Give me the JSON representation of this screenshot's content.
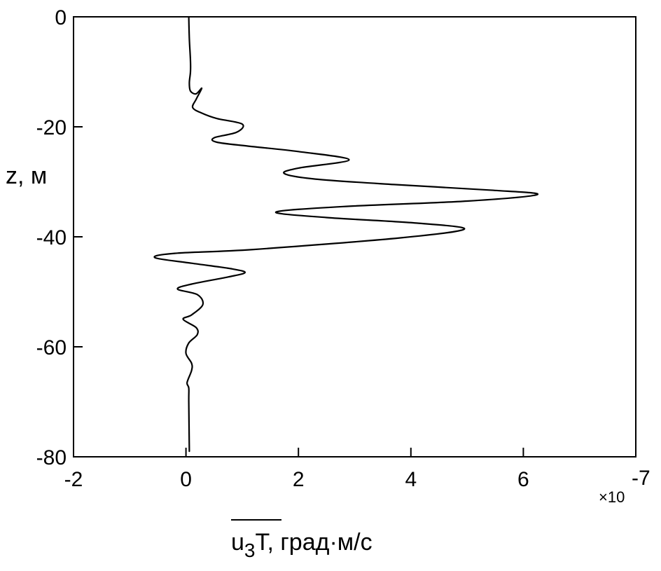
{
  "chart_data": {
    "type": "line",
    "orientation": "profile",
    "title": "",
    "xlabel": {
      "overbar_text": "u3T",
      "main": "u",
      "subscript": "3",
      "tail": "T",
      "units": ", град·м/с"
    },
    "ylabel": "z, м",
    "x_multiplier": {
      "base": "×10",
      "exponent": "-7"
    },
    "xlim": [
      -2,
      8
    ],
    "ylim": [
      -80,
      0
    ],
    "x_ticks": [
      -2,
      0,
      2,
      4,
      6
    ],
    "x_tick_labels": [
      "-2",
      "0",
      "2",
      "4",
      "6"
    ],
    "y_ticks": [
      0,
      -20,
      -40,
      -60,
      -80
    ],
    "y_tick_labels": [
      "0",
      "-20",
      "-40",
      "-60",
      "-80"
    ],
    "grid": false,
    "legend": "none",
    "line_color": "#000000",
    "series": [
      {
        "x": [
          0.05,
          0.06,
          0.08,
          0.08,
          0.06,
          0.08,
          0.18,
          0.28,
          0.18,
          0.12,
          0.28,
          0.55,
          1.0,
          0.9,
          0.5,
          0.55,
          1.1,
          2.0,
          2.9,
          2.0,
          1.75,
          2.3,
          3.7,
          5.4,
          6.25,
          5.0,
          2.8,
          1.6,
          2.5,
          4.1,
          4.95,
          3.8,
          1.2,
          -0.2,
          -0.55,
          0.1,
          0.8,
          1.05,
          0.75,
          0.1,
          -0.15,
          0.2,
          0.3,
          0.1,
          -0.05,
          0.18,
          0.2,
          0.05,
          0.0,
          0.1,
          0.1,
          0.02,
          0.05,
          0.05,
          0.06
        ],
        "y": [
          0,
          -4,
          -8,
          -10,
          -12,
          -13.5,
          -14,
          -13,
          -15,
          -16.5,
          -17.5,
          -18.5,
          -19.5,
          -21,
          -22,
          -22.8,
          -23.5,
          -24.5,
          -26,
          -27.5,
          -28.5,
          -29.5,
          -30.5,
          -31.5,
          -32.3,
          -33.5,
          -34.5,
          -35.5,
          -36.5,
          -37.5,
          -38.6,
          -40.2,
          -42.3,
          -43,
          -43.8,
          -44.8,
          -45.8,
          -46.5,
          -47.3,
          -48.6,
          -49.5,
          -50.5,
          -52.3,
          -54.2,
          -55,
          -56.5,
          -57.8,
          -59.3,
          -61.2,
          -63,
          -64.3,
          -66.5,
          -67.5,
          -70,
          -79
        ]
      }
    ]
  }
}
